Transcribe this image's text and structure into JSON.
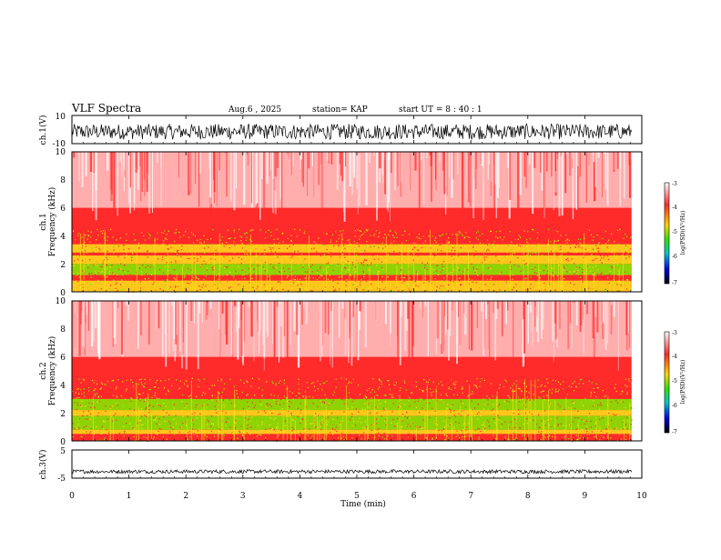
{
  "header": {
    "title": "VLF Spectra",
    "date": "Aug.6  , 2025",
    "station": "station= KAP",
    "start": "start  UT =   8 : 40 : 1"
  },
  "colors": {
    "spectrum_background": "#ff2a2a",
    "spectrum_low": "#ffd9d9",
    "band_yellow": "#ffe21a",
    "band_green": "#7cf000",
    "trace": "#000000",
    "colorbar_stops": [
      "#fbfbfb",
      "#ff2a2a",
      "#ffd400",
      "#34e000",
      "#00c8c8",
      "#0000e0",
      "#000000"
    ]
  },
  "chart_data": [
    {
      "type": "line",
      "panel": "ch1-waveform",
      "ylabel": "ch.1(V)",
      "ylim": [
        -10,
        10
      ],
      "yticks": [
        "10",
        "-10"
      ],
      "description_values": {
        "typical_range": [
          -7,
          4
        ]
      }
    },
    {
      "type": "heatmap",
      "panel": "ch1-spectrogram",
      "ylabel_line1": "ch.1",
      "ylabel_line2": "Frequency  (kHz)",
      "ylim": [
        0,
        10
      ],
      "yticks": [
        "0",
        "2",
        "4",
        "6",
        "8",
        "10"
      ],
      "bands_khz": [
        {
          "from": 0.0,
          "to": 0.8,
          "level": "mixed"
        },
        {
          "from": 1.2,
          "to": 2.0,
          "level": "green"
        },
        {
          "from": 2.0,
          "to": 2.6,
          "level": "yellow"
        },
        {
          "from": 2.8,
          "to": 3.4,
          "level": "yellow"
        },
        {
          "from": 3.4,
          "to": 4.2,
          "level": "red"
        }
      ],
      "colorbar": {
        "label": "log(PSD)(V²/Hz)",
        "ticks": [
          "-3",
          "-4",
          "-5",
          "-6",
          "-7"
        ]
      }
    },
    {
      "type": "heatmap",
      "panel": "ch2-spectrogram",
      "ylabel_line1": "ch.2",
      "ylabel_line2": "Frequency  (kHz)",
      "ylim": [
        0,
        10
      ],
      "yticks": [
        "0",
        "2",
        "4",
        "6",
        "8",
        "10"
      ],
      "bands_khz": [
        {
          "from": 0.5,
          "to": 0.8,
          "level": "yellow"
        },
        {
          "from": 0.8,
          "to": 1.8,
          "level": "green"
        },
        {
          "from": 1.8,
          "to": 2.2,
          "level": "yellow"
        },
        {
          "from": 2.2,
          "to": 3.0,
          "level": "green"
        },
        {
          "from": 3.0,
          "to": 3.8,
          "level": "red"
        }
      ],
      "colorbar": {
        "label": "log(PSD)(V²/Hz)",
        "ticks": [
          "-3",
          "-4",
          "-5",
          "-6",
          "-7"
        ]
      }
    },
    {
      "type": "line",
      "panel": "ch3-waveform",
      "ylabel": "ch.3(V)",
      "ylim": [
        -5,
        5
      ],
      "yticks": [
        "5",
        "-5"
      ],
      "description_values": {
        "typical_range": [
          -3.3,
          -2.0
        ]
      }
    }
  ],
  "xaxis": {
    "label": "Time  (min)",
    "ticks": [
      "0",
      "1",
      "2",
      "3",
      "4",
      "5",
      "6",
      "7",
      "8",
      "9",
      "10"
    ],
    "xlim": [
      0,
      10
    ],
    "data_end_min": 9.82
  }
}
